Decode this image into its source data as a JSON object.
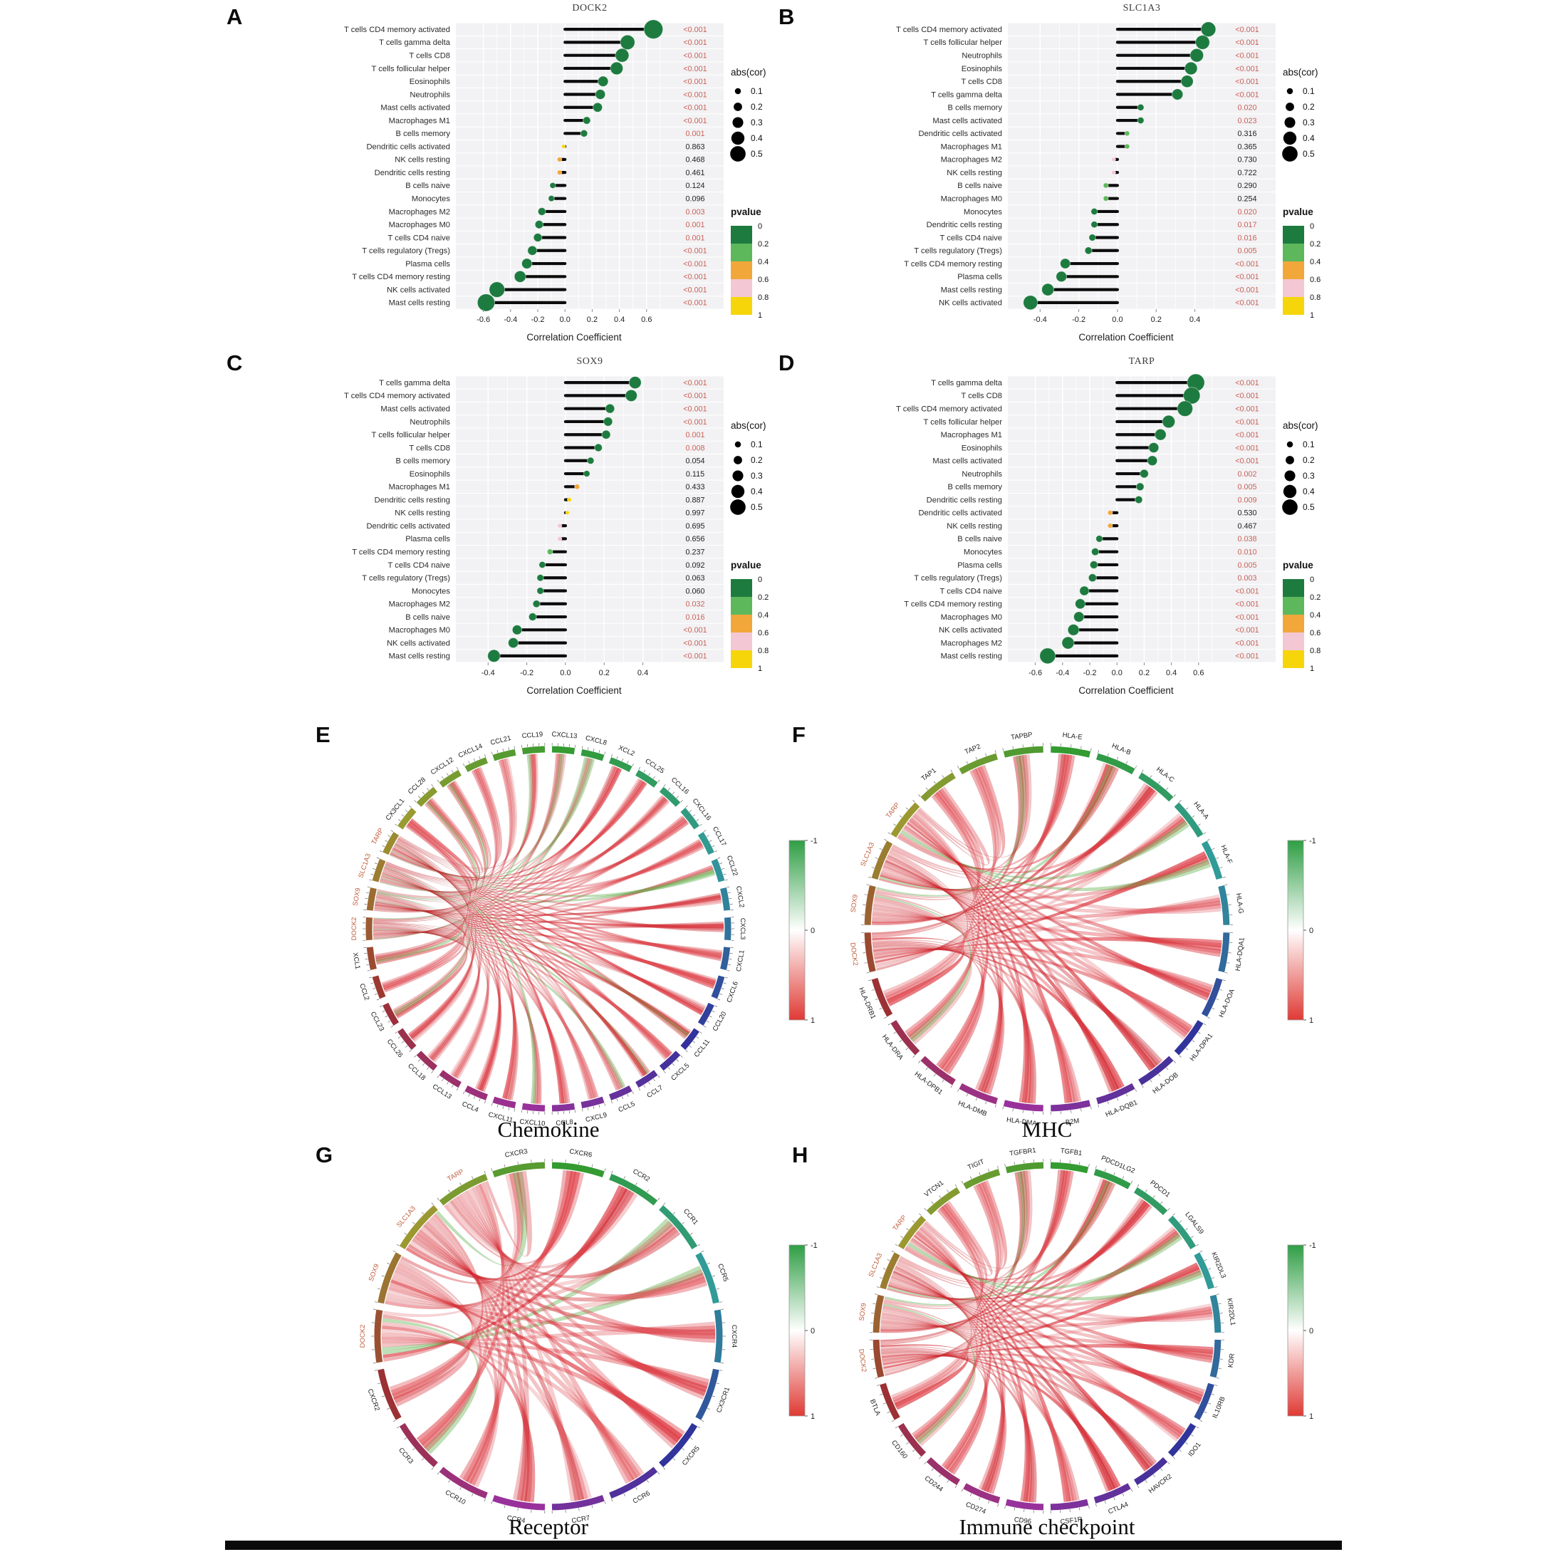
{
  "figure": {
    "panel_letters": [
      "A",
      "B",
      "C",
      "D",
      "E",
      "F",
      "G",
      "H"
    ],
    "xlabel": "Correlation Coefficient",
    "legend": {
      "abs_cor_title": "abs(cor)",
      "abs_cor_values": [
        "0.1",
        "0.2",
        "0.3",
        "0.4",
        "0.5"
      ],
      "pvalue_title": "pvalue",
      "pvalue_ticks": [
        "0",
        "0.2",
        "0.4",
        "0.6",
        "0.8",
        "1"
      ],
      "pvalue_colors": [
        "#1e7b40",
        "#5cb85a",
        "#f2a73b",
        "#f3c7d3",
        "#f6d60a"
      ]
    },
    "colorbar_ticks": [
      "-1",
      "0",
      "1"
    ],
    "significant_p_color": "#cb6158",
    "chord_red": "#e03a34",
    "chord_green": "#4ca64c"
  },
  "chart_data": [
    {
      "type": "lollipop",
      "panel": "A",
      "title": "DOCK2",
      "xlabel": "Correlation Coefficient",
      "ylabel": "",
      "xlim": [
        -0.75,
        0.8
      ],
      "xticks": [
        -0.6,
        -0.4,
        -0.2,
        0.0,
        0.2,
        0.4,
        0.6
      ],
      "xtick_labels": [
        "-0.6",
        "-0.4",
        "-0.2",
        "0.0",
        "0.2",
        "0.4",
        "0.6"
      ],
      "categories": [
        "T cells CD4 memory activated",
        "T cells gamma delta",
        "T cells CD8",
        "T cells follicular helper",
        "Eosinophils",
        "Neutrophils",
        "Mast cells activated",
        "Macrophages M1",
        "B cells memory",
        "Dendritic cells activated",
        "NK cells resting",
        "Dendritic cells resting",
        "B cells naive",
        "Monocytes",
        "Macrophages M2",
        "Macrophages M0",
        "T cells CD4 naive",
        "T cells regulatory (Tregs)",
        "Plasma cells",
        "T cells CD4 memory resting",
        "NK cells activated",
        "Mast cells resting"
      ],
      "values": [
        0.65,
        0.46,
        0.42,
        0.38,
        0.28,
        0.26,
        0.24,
        0.16,
        0.14,
        -0.01,
        -0.04,
        -0.04,
        -0.09,
        -0.1,
        -0.17,
        -0.19,
        -0.2,
        -0.24,
        -0.28,
        -0.33,
        -0.5,
        -0.58
      ],
      "pvalues": [
        "<0.001",
        "<0.001",
        "<0.001",
        "<0.001",
        "<0.001",
        "<0.001",
        "<0.001",
        "<0.001",
        "0.001",
        "0.863",
        "0.468",
        "0.461",
        "0.124",
        "0.096",
        "0.003",
        "0.001",
        "0.001",
        "<0.001",
        "<0.001",
        "<0.001",
        "<0.001",
        "<0.001"
      ]
    },
    {
      "type": "lollipop",
      "panel": "B",
      "title": "SLC1A3",
      "xlabel": "Correlation Coefficient",
      "ylabel": "",
      "xlim": [
        -0.53,
        0.56
      ],
      "xticks": [
        -0.4,
        -0.2,
        0.0,
        0.2,
        0.4
      ],
      "xtick_labels": [
        "-0.4",
        "-0.2",
        "0.0",
        "0.2",
        "0.4"
      ],
      "categories": [
        "T cells CD4 memory activated",
        "T cells follicular helper",
        "Neutrophils",
        "Eosinophils",
        "T cells CD8",
        "T cells gamma delta",
        "B cells memory",
        "Mast cells activated",
        "Dendritic cells activated",
        "Macrophages M1",
        "Macrophages M2",
        "NK cells resting",
        "B cells naive",
        "Macrophages M0",
        "Monocytes",
        "Dendritic cells resting",
        "T cells CD4 naive",
        "T cells regulatory (Tregs)",
        "T cells CD4 memory resting",
        "Plasma cells",
        "Mast cells resting",
        "NK cells activated"
      ],
      "values": [
        0.47,
        0.44,
        0.41,
        0.38,
        0.36,
        0.31,
        0.12,
        0.12,
        0.05,
        0.05,
        -0.02,
        -0.02,
        -0.06,
        -0.06,
        -0.12,
        -0.12,
        -0.13,
        -0.15,
        -0.27,
        -0.29,
        -0.36,
        -0.45
      ],
      "pvalues": [
        "<0.001",
        "<0.001",
        "<0.001",
        "<0.001",
        "<0.001",
        "<0.001",
        "0.020",
        "0.023",
        "0.316",
        "0.365",
        "0.730",
        "0.722",
        "0.290",
        "0.254",
        "0.020",
        "0.017",
        "0.016",
        "0.005",
        "<0.001",
        "<0.001",
        "<0.001",
        "<0.001"
      ]
    },
    {
      "type": "lollipop",
      "panel": "C",
      "title": "SOX9",
      "xlabel": "Correlation Coefficient",
      "ylabel": "",
      "xlim": [
        -0.53,
        0.56
      ],
      "xticks": [
        -0.4,
        -0.2,
        0.0,
        0.2,
        0.4
      ],
      "xtick_labels": [
        "-0.4",
        "-0.2",
        "0.0",
        "0.2",
        "0.4"
      ],
      "categories": [
        "T cells gamma delta",
        "T cells CD4 memory activated",
        "Mast cells activated",
        "Neutrophils",
        "T cells follicular helper",
        "T cells CD8",
        "B cells memory",
        "Eosinophils",
        "Macrophages M1",
        "Dendritic cells resting",
        "NK cells resting",
        "Dendritic cells activated",
        "Plasma cells",
        "T cells CD4 memory resting",
        "T cells CD4 naive",
        "T cells regulatory (Tregs)",
        "Monocytes",
        "Macrophages M2",
        "B cells naive",
        "Macrophages M0",
        "NK cells activated",
        "Mast cells resting"
      ],
      "values": [
        0.36,
        0.34,
        0.23,
        0.22,
        0.21,
        0.17,
        0.13,
        0.11,
        0.06,
        0.02,
        0.01,
        -0.03,
        -0.03,
        -0.08,
        -0.12,
        -0.13,
        -0.13,
        -0.15,
        -0.17,
        -0.25,
        -0.27,
        -0.37
      ],
      "pvalues": [
        "<0.001",
        "<0.001",
        "<0.001",
        "<0.001",
        "0.001",
        "0.008",
        "0.054",
        "0.115",
        "0.433",
        "0.887",
        "0.997",
        "0.695",
        "0.656",
        "0.237",
        "0.092",
        "0.063",
        "0.060",
        "0.032",
        "0.016",
        "<0.001",
        "<0.001",
        "<0.001"
      ]
    },
    {
      "type": "lollipop",
      "panel": "D",
      "title": "TARP",
      "xlabel": "Correlation Coefficient",
      "ylabel": "",
      "xlim": [
        -0.75,
        0.8
      ],
      "xticks": [
        -0.6,
        -0.4,
        -0.2,
        0.0,
        0.2,
        0.4,
        0.6
      ],
      "xtick_labels": [
        "-0.6",
        "-0.4",
        "-0.2",
        "0.0",
        "0.2",
        "0.4",
        "0.6"
      ],
      "categories": [
        "T cells gamma delta",
        "T cells CD8",
        "T cells CD4 memory activated",
        "T cells follicular helper",
        "Macrophages M1",
        "Eosinophils",
        "Mast cells activated",
        "Neutrophils",
        "B cells memory",
        "Dendritic cells resting",
        "Dendritic cells activated",
        "NK cells resting",
        "B cells naive",
        "Monocytes",
        "Plasma cells",
        "T cells regulatory (Tregs)",
        "T cells CD4 naive",
        "T cells CD4 memory resting",
        "Macrophages M0",
        "NK cells activated",
        "Macrophages M2",
        "Mast cells resting"
      ],
      "values": [
        0.58,
        0.55,
        0.5,
        0.38,
        0.32,
        0.27,
        0.26,
        0.2,
        0.17,
        0.16,
        -0.05,
        -0.05,
        -0.13,
        -0.16,
        -0.17,
        -0.18,
        -0.24,
        -0.27,
        -0.28,
        -0.32,
        -0.36,
        -0.51
      ],
      "pvalues": [
        "<0.001",
        "<0.001",
        "<0.001",
        "<0.001",
        "<0.001",
        "<0.001",
        "<0.001",
        "0.002",
        "0.005",
        "0.009",
        "0.530",
        "0.467",
        "0.038",
        "0.010",
        "0.005",
        "0.003",
        "<0.001",
        "<0.001",
        "<0.001",
        "<0.001",
        "<0.001",
        "<0.001"
      ]
    },
    {
      "type": "chord",
      "panel": "E",
      "title": "Chemokine",
      "gene_labels": [
        "DOCK2",
        "SOX9",
        "SLC1A3",
        "TARP"
      ],
      "labels": [
        "CXCL13",
        "CXCL8",
        "XCL2",
        "CCL25",
        "CCL16",
        "CXCL16",
        "CCL17",
        "CCL22",
        "CXCL2",
        "CXCL3",
        "CXCL1",
        "CXCL6",
        "CCL20",
        "CCL11",
        "CXCL5",
        "CCL7",
        "CCL5",
        "CXCL9",
        "CCL8",
        "CXCL10",
        "CXCL11",
        "CCL4",
        "CCL13",
        "CCL18",
        "CCL26",
        "CCL23",
        "CCL2",
        "XCL1",
        "DOCK2",
        "SOX9",
        "SLC1A3",
        "TARP",
        "CX3CL1",
        "CCL28",
        "CXCL12",
        "CXCL14",
        "CCL21",
        "CCL19"
      ],
      "colorbar": {
        "min": -1,
        "max": 1,
        "ticks": [
          -1,
          0,
          1
        ]
      }
    },
    {
      "type": "chord",
      "panel": "F",
      "title": "MHC",
      "gene_labels": [
        "DOCK2",
        "SOX9",
        "SLC1A3",
        "TARP"
      ],
      "labels": [
        "HLA-E",
        "HLA-B",
        "HLA-C",
        "HLA-A",
        "HLA-F",
        "HLA-G",
        "HLA-DQA1",
        "HLA-DOA",
        "HLA-DPA1",
        "HLA-DOB",
        "HLA-DQB1",
        "B2M",
        "HLA-DMA",
        "HLA-DMB",
        "HLA-DPB1",
        "HLA-DRA",
        "HLA-DRB1",
        "DOCK2",
        "SOX9",
        "SLC1A3",
        "TARP",
        "TAP1",
        "TAP2",
        "TAPBP"
      ],
      "colorbar": {
        "min": -1,
        "max": 1,
        "ticks": [
          -1,
          0,
          1
        ]
      }
    },
    {
      "type": "chord",
      "panel": "G",
      "title": "Receptor",
      "gene_labels": [
        "DOCK2",
        "SOX9",
        "SLC1A3",
        "TARP"
      ],
      "labels": [
        "CXCR6",
        "CCR2",
        "CCR1",
        "CCR5",
        "CXCR4",
        "CX3CR1",
        "CXCR5",
        "CCR6",
        "CCR7",
        "CCR4",
        "CCR10",
        "CCR3",
        "CXCR2",
        "DOCK2",
        "SOX9",
        "SLC1A3",
        "TARP",
        "CXCR3"
      ],
      "colorbar": {
        "min": -1,
        "max": 1,
        "ticks": [
          -1,
          0,
          1
        ]
      }
    },
    {
      "type": "chord",
      "panel": "H",
      "title": "Immune checkpoint",
      "gene_labels": [
        "DOCK2",
        "SOX9",
        "SLC1A3",
        "TARP"
      ],
      "labels": [
        "TGFB1",
        "PDCD1LG2",
        "PDCD1",
        "LGALS9",
        "KIR2DL3",
        "KIR2DL1",
        "KDR",
        "IL10RB",
        "IDO1",
        "HAVCR2",
        "CTLA4",
        "CSF1R",
        "CD96",
        "CD274",
        "CD244",
        "CD160",
        "BTLA",
        "DOCK2",
        "SOX9",
        "SLC1A3",
        "TARP",
        "VTCN1",
        "TIGIT",
        "TGFBR1"
      ],
      "colorbar": {
        "min": -1,
        "max": 1,
        "ticks": [
          -1,
          0,
          1
        ]
      }
    }
  ]
}
